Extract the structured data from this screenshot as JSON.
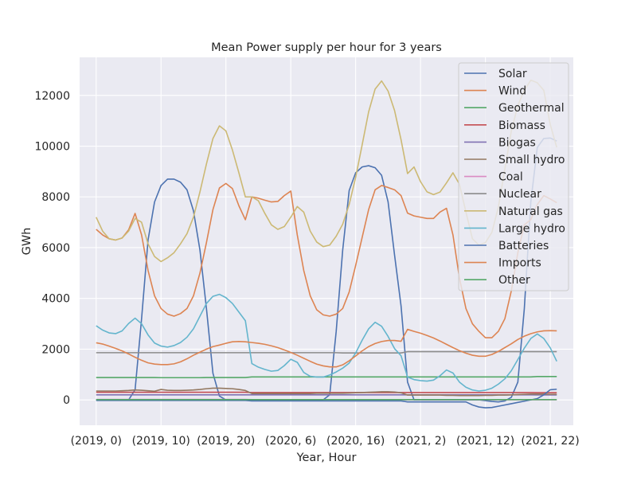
{
  "chart_data": {
    "type": "line",
    "title": "Mean Power supply per hour for 3 years",
    "xlabel": "Year, Hour",
    "ylabel": "GWh",
    "ylim": [
      -1000,
      13500
    ],
    "xlim": [
      -2.55,
      73.55
    ],
    "grid": true,
    "legend_position": "upper right",
    "x": [
      0,
      1,
      2,
      3,
      4,
      5,
      6,
      7,
      8,
      9,
      10,
      11,
      12,
      13,
      14,
      15,
      16,
      17,
      18,
      19,
      20,
      21,
      22,
      23,
      24,
      25,
      26,
      27,
      28,
      29,
      30,
      31,
      32,
      33,
      34,
      35,
      36,
      37,
      38,
      39,
      40,
      41,
      42,
      43,
      44,
      45,
      46,
      47,
      48,
      49,
      50,
      51,
      52,
      53,
      54,
      55,
      56,
      57,
      58,
      59,
      60,
      61,
      62,
      63,
      64,
      65,
      66,
      67,
      68,
      69,
      70,
      71
    ],
    "x_tick_positions": [
      0,
      10,
      20,
      30,
      40,
      50,
      60,
      70
    ],
    "x_tick_labels": [
      "(2019, 0)",
      "(2019, 10)",
      "(2019, 20)",
      "(2020, 6)",
      "(2020, 16)",
      "(2021, 2)",
      "(2021, 12)",
      "(2021, 22)"
    ],
    "y_ticks": [
      0,
      2000,
      4000,
      6000,
      8000,
      10000,
      12000
    ],
    "series": [
      {
        "name": "Solar",
        "color": "#4c72b0",
        "values": [
          0,
          0,
          0,
          0,
          0,
          0,
          400,
          3200,
          6300,
          7800,
          8450,
          8700,
          8700,
          8580,
          8280,
          7450,
          5900,
          3600,
          1050,
          150,
          0,
          0,
          0,
          0,
          0,
          0,
          0,
          0,
          0,
          0,
          0,
          0,
          0,
          0,
          0,
          0,
          200,
          2700,
          5900,
          8250,
          8950,
          9180,
          9230,
          9150,
          8850,
          7800,
          5700,
          3700,
          700,
          0,
          0,
          0,
          0,
          0,
          0,
          0,
          0,
          0,
          0,
          0,
          -30,
          -60,
          -80,
          -40,
          100,
          700,
          3600,
          7800,
          9950,
          10300,
          10320,
          10200
        ]
      },
      {
        "name": "Wind",
        "color": "#dd8452",
        "values": [
          6720,
          6500,
          6350,
          6300,
          6380,
          6700,
          7350,
          6500,
          5100,
          4100,
          3600,
          3380,
          3300,
          3400,
          3600,
          4100,
          5000,
          6200,
          7500,
          8350,
          8530,
          8330,
          7650,
          7100,
          8000,
          7950,
          7870,
          7800,
          7820,
          8050,
          8230,
          6500,
          5100,
          4100,
          3550,
          3350,
          3300,
          3380,
          3600,
          4250,
          5300,
          6400,
          7500,
          8280,
          8450,
          8370,
          8280,
          8050,
          7360,
          7250,
          7200,
          7150,
          7150,
          7400,
          7550,
          6500,
          4800,
          3600,
          3000,
          2700,
          2450,
          2450,
          2700,
          3200,
          4300,
          5800,
          6900,
          7100,
          7700,
          8050,
          7920,
          7770
        ]
      },
      {
        "name": "Geothermal",
        "color": "#55a868",
        "values": [
          880,
          880,
          880,
          880,
          880,
          880,
          880,
          880,
          880,
          880,
          875,
          875,
          875,
          875,
          875,
          875,
          875,
          880,
          880,
          880,
          880,
          880,
          880,
          880,
          905,
          905,
          905,
          905,
          905,
          905,
          905,
          905,
          905,
          905,
          905,
          905,
          905,
          905,
          905,
          905,
          905,
          905,
          905,
          905,
          905,
          905,
          905,
          905,
          905,
          905,
          905,
          905,
          905,
          905,
          905,
          905,
          905,
          905,
          905,
          905,
          905,
          905,
          905,
          905,
          905,
          905,
          905,
          905,
          920,
          920,
          920,
          920
        ]
      },
      {
        "name": "Biomass",
        "color": "#c44e52",
        "values": [
          300,
          300,
          300,
          300,
          300,
          300,
          300,
          300,
          300,
          300,
          300,
          300,
          300,
          300,
          300,
          300,
          300,
          300,
          300,
          300,
          300,
          300,
          300,
          300,
          290,
          290,
          290,
          290,
          290,
          290,
          290,
          290,
          290,
          290,
          290,
          290,
          290,
          290,
          290,
          290,
          290,
          290,
          290,
          290,
          290,
          290,
          290,
          290,
          290,
          290,
          290,
          290,
          290,
          290,
          290,
          290,
          290,
          290,
          290,
          290,
          290,
          290,
          290,
          290,
          290,
          290,
          290,
          290,
          285,
          285,
          285,
          285
        ]
      },
      {
        "name": "Biogas",
        "color": "#8172b3",
        "values": [
          200,
          200,
          200,
          200,
          200,
          200,
          200,
          200,
          200,
          200,
          200,
          200,
          200,
          200,
          200,
          200,
          200,
          200,
          200,
          200,
          200,
          200,
          200,
          200,
          200,
          200,
          200,
          200,
          200,
          200,
          200,
          200,
          200,
          200,
          200,
          200,
          200,
          200,
          200,
          200,
          200,
          200,
          200,
          200,
          200,
          200,
          200,
          200,
          200,
          200,
          200,
          200,
          200,
          200,
          200,
          200,
          200,
          200,
          200,
          200,
          200,
          200,
          200,
          200,
          200,
          200,
          200,
          200,
          195,
          195,
          195,
          195
        ]
      },
      {
        "name": "Small hydro",
        "color": "#937860",
        "values": [
          350,
          350,
          350,
          350,
          360,
          370,
          390,
          380,
          360,
          340,
          410,
          380,
          370,
          370,
          380,
          390,
          410,
          440,
          460,
          460,
          450,
          440,
          410,
          370,
          250,
          250,
          250,
          250,
          250,
          250,
          250,
          250,
          250,
          250,
          260,
          260,
          260,
          260,
          260,
          270,
          280,
          290,
          300,
          310,
          320,
          320,
          310,
          280,
          190,
          190,
          190,
          190,
          190,
          190,
          180,
          180,
          170,
          170,
          170,
          170,
          180,
          180,
          190,
          190,
          200,
          210,
          220,
          230,
          230,
          230,
          220,
          220
        ]
      },
      {
        "name": "Coal",
        "color": "#da8bc3",
        "values": [
          20,
          20,
          20,
          20,
          20,
          20,
          20,
          20,
          20,
          20,
          20,
          20,
          20,
          20,
          20,
          20,
          20,
          20,
          20,
          20,
          20,
          20,
          20,
          20,
          10,
          10,
          10,
          10,
          10,
          10,
          10,
          10,
          10,
          10,
          10,
          10,
          10,
          10,
          10,
          10,
          10,
          10,
          10,
          10,
          10,
          10,
          10,
          10,
          5,
          5,
          5,
          5,
          5,
          5,
          5,
          5,
          5,
          5,
          5,
          5,
          5,
          5,
          5,
          5,
          5,
          5,
          5,
          5,
          5,
          5,
          5,
          5
        ]
      },
      {
        "name": "Nuclear",
        "color": "#8c8c8c",
        "values": [
          1860,
          1860,
          1860,
          1860,
          1860,
          1860,
          1860,
          1860,
          1860,
          1860,
          1860,
          1860,
          1860,
          1860,
          1860,
          1860,
          1860,
          1860,
          1860,
          1860,
          1860,
          1860,
          1860,
          1860,
          1860,
          1860,
          1860,
          1860,
          1860,
          1860,
          1860,
          1860,
          1860,
          1860,
          1860,
          1860,
          1860,
          1860,
          1850,
          1850,
          1850,
          1850,
          1850,
          1850,
          1850,
          1850,
          1850,
          1850,
          1900,
          1900,
          1900,
          1900,
          1900,
          1900,
          1900,
          1900,
          1900,
          1900,
          1900,
          1900,
          1900,
          1900,
          1900,
          1900,
          1900,
          1900,
          1900,
          1900,
          1900,
          1900,
          1900,
          1900
        ]
      },
      {
        "name": "Natural gas",
        "color": "#ccb974",
        "values": [
          7200,
          6650,
          6350,
          6300,
          6380,
          6650,
          7150,
          7000,
          6150,
          5650,
          5450,
          5600,
          5800,
          6150,
          6550,
          7200,
          8200,
          9300,
          10300,
          10800,
          10600,
          9850,
          8950,
          8000,
          8000,
          7850,
          7350,
          6900,
          6720,
          6830,
          7200,
          7620,
          7400,
          6650,
          6220,
          6040,
          6100,
          6450,
          6920,
          7700,
          8770,
          10050,
          11350,
          12250,
          12570,
          12170,
          11400,
          10250,
          8920,
          9180,
          8600,
          8200,
          8090,
          8190,
          8550,
          8950,
          8500,
          7400,
          6350,
          6100,
          6200,
          6600,
          7600,
          9100,
          10600,
          11600,
          12200,
          12600,
          12500,
          12200,
          10850,
          9950
        ]
      },
      {
        "name": "Large hydro",
        "color": "#64b5cd",
        "values": [
          2920,
          2750,
          2640,
          2610,
          2720,
          3010,
          3220,
          3000,
          2560,
          2240,
          2120,
          2080,
          2140,
          2260,
          2470,
          2800,
          3300,
          3800,
          4080,
          4160,
          4030,
          3800,
          3460,
          3120,
          1430,
          1290,
          1200,
          1130,
          1160,
          1350,
          1600,
          1480,
          1080,
          930,
          900,
          900,
          980,
          1100,
          1250,
          1450,
          1850,
          2350,
          2800,
          3060,
          2900,
          2500,
          2020,
          1740,
          900,
          800,
          760,
          740,
          780,
          950,
          1180,
          1060,
          700,
          500,
          390,
          350,
          380,
          460,
          620,
          830,
          1150,
          1590,
          2040,
          2420,
          2600,
          2420,
          2050,
          1520
        ]
      },
      {
        "name": "Batteries",
        "color": "#4c72b0",
        "values": [
          -20,
          -20,
          -20,
          -20,
          -20,
          -20,
          -20,
          -20,
          -20,
          -20,
          -20,
          -20,
          -20,
          -20,
          -20,
          -20,
          -20,
          -20,
          -20,
          -20,
          -20,
          -20,
          -20,
          -20,
          -40,
          -40,
          -40,
          -40,
          -40,
          -40,
          -40,
          -40,
          -40,
          -40,
          -40,
          -40,
          -40,
          -40,
          -40,
          -40,
          -40,
          -40,
          -40,
          -40,
          -40,
          -40,
          -40,
          -40,
          -80,
          -80,
          -80,
          -80,
          -80,
          -80,
          -80,
          -80,
          -80,
          -80,
          -200,
          -280,
          -310,
          -300,
          -250,
          -200,
          -150,
          -100,
          -50,
          0,
          50,
          200,
          400,
          420
        ]
      },
      {
        "name": "Imports",
        "color": "#dd8452",
        "values": [
          2250,
          2200,
          2120,
          2030,
          1930,
          1810,
          1680,
          1560,
          1460,
          1410,
          1390,
          1390,
          1420,
          1500,
          1620,
          1760,
          1880,
          2000,
          2100,
          2160,
          2230,
          2290,
          2300,
          2290,
          2260,
          2230,
          2190,
          2130,
          2060,
          1970,
          1870,
          1760,
          1640,
          1520,
          1410,
          1340,
          1300,
          1300,
          1380,
          1540,
          1730,
          1930,
          2100,
          2220,
          2300,
          2340,
          2340,
          2310,
          2780,
          2700,
          2630,
          2540,
          2440,
          2320,
          2190,
          2060,
          1940,
          1840,
          1760,
          1720,
          1720,
          1790,
          1910,
          2060,
          2210,
          2380,
          2510,
          2610,
          2680,
          2720,
          2730,
          2720
        ]
      },
      {
        "name": "Other",
        "color": "#55a868",
        "values": [
          10,
          10,
          10,
          10,
          10,
          10,
          10,
          10,
          10,
          10,
          10,
          10,
          10,
          10,
          10,
          10,
          10,
          10,
          10,
          10,
          10,
          10,
          10,
          10,
          10,
          10,
          10,
          10,
          10,
          10,
          10,
          10,
          10,
          10,
          10,
          10,
          10,
          10,
          10,
          10,
          10,
          10,
          10,
          10,
          10,
          10,
          10,
          10,
          10,
          10,
          10,
          10,
          10,
          10,
          10,
          10,
          10,
          10,
          10,
          10,
          10,
          10,
          10,
          10,
          10,
          10,
          10,
          10,
          10,
          10,
          10,
          10
        ]
      }
    ]
  }
}
